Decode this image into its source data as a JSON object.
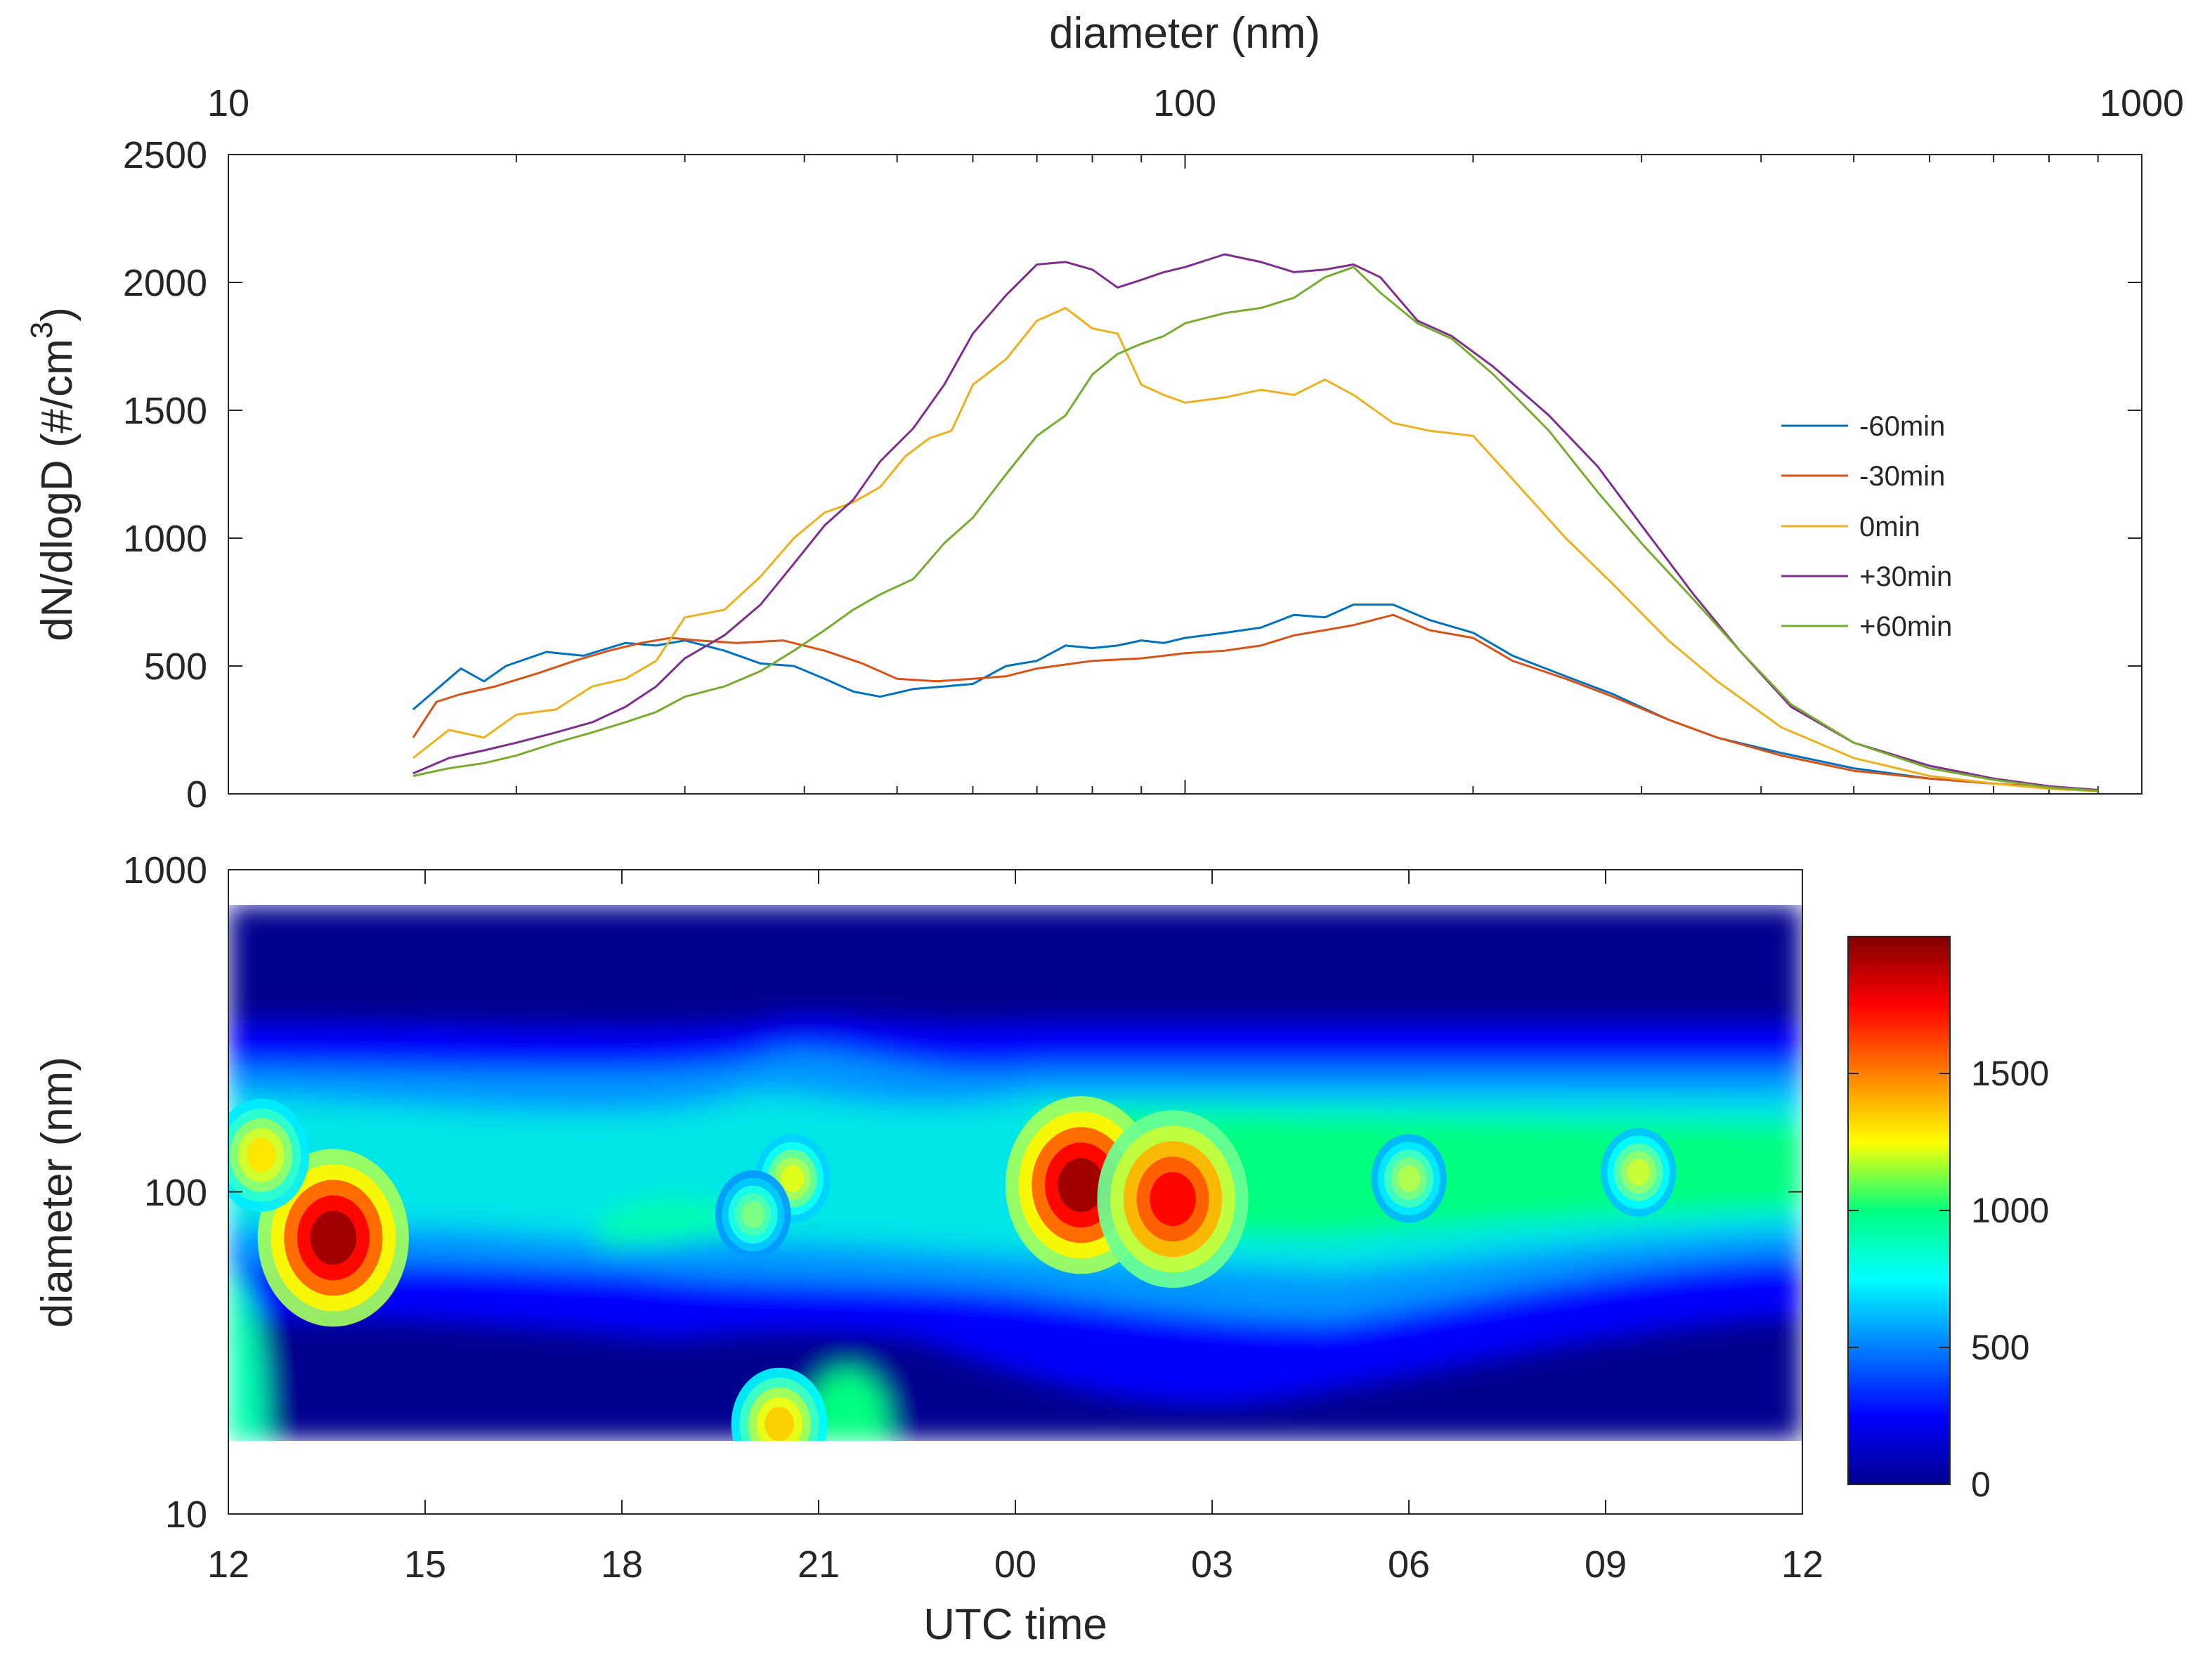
{
  "chart_data": [
    {
      "type": "line",
      "xscale": "log",
      "xlabel": "diameter (nm)",
      "ylabel_main": "dN/dlogD (#/cm",
      "ylabel_sup": "3",
      "ylabel_close": ")",
      "xlim": [
        10,
        1000
      ],
      "ylim": [
        0,
        2500
      ],
      "xtick_labels": [
        "10",
        "100",
        "1000"
      ],
      "ytick_labels": [
        "0",
        "500",
        "1000",
        "1500",
        "2000",
        "2500"
      ],
      "legend": [
        "-60min",
        "-30min",
        "0min",
        "+30min",
        "+60min"
      ],
      "series": [
        {
          "name": "-60min",
          "color": "#0072BD",
          "points": [
            [
              15.6,
              330
            ],
            [
              17.5,
              490
            ],
            [
              18.5,
              440
            ],
            [
              19.5,
              500
            ],
            [
              21.5,
              555
            ],
            [
              23.5,
              540
            ],
            [
              26,
              590
            ],
            [
              28,
              580
            ],
            [
              30,
              600
            ],
            [
              33,
              560
            ],
            [
              36,
              510
            ],
            [
              39,
              500
            ],
            [
              42,
              450
            ],
            [
              45,
              400
            ],
            [
              48,
              380
            ],
            [
              52,
              410
            ],
            [
              56,
              420
            ],
            [
              60,
              430
            ],
            [
              65,
              500
            ],
            [
              70,
              520
            ],
            [
              75,
              580
            ],
            [
              80,
              570
            ],
            [
              85,
              580
            ],
            [
              90,
              600
            ],
            [
              95,
              590
            ],
            [
              100,
              610
            ],
            [
              110,
              630
            ],
            [
              120,
              650
            ],
            [
              130,
              700
            ],
            [
              140,
              690
            ],
            [
              150,
              740
            ],
            [
              165,
              740
            ],
            [
              180,
              680
            ],
            [
              200,
              630
            ],
            [
              220,
              540
            ],
            [
              250,
              460
            ],
            [
              280,
              390
            ],
            [
              320,
              290
            ],
            [
              360,
              220
            ],
            [
              420,
              160
            ],
            [
              500,
              100
            ],
            [
              600,
              60
            ],
            [
              700,
              40
            ],
            [
              800,
              25
            ],
            [
              900,
              15
            ]
          ]
        },
        {
          "name": "-30min",
          "color": "#D95319",
          "points": [
            [
              15.6,
              220
            ],
            [
              16.5,
              360
            ],
            [
              17.5,
              390
            ],
            [
              19,
              420
            ],
            [
              21,
              470
            ],
            [
              23,
              520
            ],
            [
              25,
              560
            ],
            [
              27,
              590
            ],
            [
              29,
              610
            ],
            [
              31,
              600
            ],
            [
              34,
              590
            ],
            [
              38,
              600
            ],
            [
              42,
              560
            ],
            [
              46,
              510
            ],
            [
              50,
              450
            ],
            [
              55,
              440
            ],
            [
              60,
              450
            ],
            [
              65,
              460
            ],
            [
              70,
              490
            ],
            [
              80,
              520
            ],
            [
              90,
              530
            ],
            [
              100,
              550
            ],
            [
              110,
              560
            ],
            [
              120,
              580
            ],
            [
              130,
              620
            ],
            [
              140,
              640
            ],
            [
              150,
              660
            ],
            [
              165,
              700
            ],
            [
              180,
              640
            ],
            [
              200,
              610
            ],
            [
              220,
              520
            ],
            [
              250,
              450
            ],
            [
              280,
              380
            ],
            [
              320,
              290
            ],
            [
              360,
              220
            ],
            [
              420,
              150
            ],
            [
              500,
              90
            ],
            [
              600,
              60
            ],
            [
              700,
              40
            ],
            [
              800,
              25
            ],
            [
              900,
              15
            ]
          ]
        },
        {
          "name": "0min",
          "color": "#EDB120",
          "points": [
            [
              15.6,
              140
            ],
            [
              17,
              250
            ],
            [
              18.5,
              220
            ],
            [
              20,
              310
            ],
            [
              22,
              330
            ],
            [
              24,
              420
            ],
            [
              26,
              450
            ],
            [
              28,
              520
            ],
            [
              30,
              690
            ],
            [
              33,
              720
            ],
            [
              36,
              850
            ],
            [
              39,
              1000
            ],
            [
              42,
              1100
            ],
            [
              45,
              1140
            ],
            [
              48,
              1200
            ],
            [
              51,
              1320
            ],
            [
              54,
              1390
            ],
            [
              57,
              1420
            ],
            [
              60,
              1600
            ],
            [
              65,
              1700
            ],
            [
              70,
              1850
            ],
            [
              75,
              1900
            ],
            [
              80,
              1820
            ],
            [
              85,
              1800
            ],
            [
              90,
              1600
            ],
            [
              95,
              1560
            ],
            [
              100,
              1530
            ],
            [
              110,
              1550
            ],
            [
              120,
              1580
            ],
            [
              130,
              1560
            ],
            [
              140,
              1620
            ],
            [
              150,
              1560
            ],
            [
              165,
              1450
            ],
            [
              180,
              1420
            ],
            [
              200,
              1400
            ],
            [
              220,
              1230
            ],
            [
              250,
              1000
            ],
            [
              280,
              820
            ],
            [
              320,
              600
            ],
            [
              360,
              440
            ],
            [
              420,
              260
            ],
            [
              500,
              140
            ],
            [
              600,
              70
            ],
            [
              700,
              40
            ],
            [
              800,
              20
            ],
            [
              900,
              10
            ]
          ]
        },
        {
          "name": "+30min",
          "color": "#7E2F8E",
          "points": [
            [
              15.6,
              80
            ],
            [
              17,
              140
            ],
            [
              18.5,
              170
            ],
            [
              20,
              200
            ],
            [
              22,
              240
            ],
            [
              24,
              280
            ],
            [
              26,
              340
            ],
            [
              28,
              420
            ],
            [
              30,
              530
            ],
            [
              33,
              620
            ],
            [
              36,
              740
            ],
            [
              39,
              900
            ],
            [
              42,
              1050
            ],
            [
              45,
              1150
            ],
            [
              48,
              1300
            ],
            [
              52,
              1430
            ],
            [
              56,
              1600
            ],
            [
              60,
              1800
            ],
            [
              65,
              1950
            ],
            [
              70,
              2070
            ],
            [
              75,
              2080
            ],
            [
              80,
              2050
            ],
            [
              85,
              1980
            ],
            [
              90,
              2010
            ],
            [
              95,
              2040
            ],
            [
              100,
              2060
            ],
            [
              110,
              2110
            ],
            [
              120,
              2080
            ],
            [
              130,
              2040
            ],
            [
              140,
              2050
            ],
            [
              150,
              2070
            ],
            [
              160,
              2020
            ],
            [
              175,
              1850
            ],
            [
              190,
              1790
            ],
            [
              210,
              1670
            ],
            [
              240,
              1480
            ],
            [
              270,
              1280
            ],
            [
              300,
              1050
            ],
            [
              340,
              780
            ],
            [
              380,
              560
            ],
            [
              430,
              340
            ],
            [
              500,
              200
            ],
            [
              600,
              110
            ],
            [
              700,
              60
            ],
            [
              800,
              30
            ],
            [
              900,
              15
            ]
          ]
        },
        {
          "name": "+60min",
          "color": "#77AC30",
          "points": [
            [
              15.6,
              70
            ],
            [
              17,
              100
            ],
            [
              18.5,
              120
            ],
            [
              20,
              150
            ],
            [
              22,
              200
            ],
            [
              24,
              240
            ],
            [
              26,
              280
            ],
            [
              28,
              320
            ],
            [
              30,
              380
            ],
            [
              33,
              420
            ],
            [
              36,
              480
            ],
            [
              39,
              560
            ],
            [
              42,
              640
            ],
            [
              45,
              720
            ],
            [
              48,
              780
            ],
            [
              52,
              840
            ],
            [
              56,
              980
            ],
            [
              60,
              1080
            ],
            [
              65,
              1250
            ],
            [
              70,
              1400
            ],
            [
              75,
              1480
            ],
            [
              80,
              1640
            ],
            [
              85,
              1720
            ],
            [
              90,
              1760
            ],
            [
              95,
              1790
            ],
            [
              100,
              1840
            ],
            [
              110,
              1880
            ],
            [
              120,
              1900
            ],
            [
              130,
              1940
            ],
            [
              140,
              2020
            ],
            [
              150,
              2060
            ],
            [
              160,
              1960
            ],
            [
              175,
              1840
            ],
            [
              190,
              1780
            ],
            [
              210,
              1640
            ],
            [
              240,
              1420
            ],
            [
              270,
              1180
            ],
            [
              300,
              980
            ],
            [
              340,
              760
            ],
            [
              380,
              560
            ],
            [
              430,
              350
            ],
            [
              500,
              200
            ],
            [
              600,
              100
            ],
            [
              700,
              55
            ],
            [
              800,
              25
            ],
            [
              900,
              12
            ]
          ]
        }
      ]
    },
    {
      "type": "heatmap",
      "xlabel": "UTC time",
      "ylabel": "diameter (nm)",
      "yscale": "log",
      "ylim": [
        10,
        1000
      ],
      "xtick_labels": [
        "12",
        "15",
        "18",
        "21",
        "00",
        "03",
        "06",
        "09",
        "12"
      ],
      "ytick_labels": [
        "10",
        "100",
        "1000"
      ],
      "data_diameter_range_nm": [
        16,
        800
      ],
      "colormap": "jet",
      "colorbar_range": [
        0,
        2000
      ],
      "colorbar_ticks": [
        "0",
        "500",
        "1000",
        "1500"
      ],
      "features": [
        {
          "time_h": 13.6,
          "diameter_nm": 72,
          "value": 1950
        },
        {
          "time_h": 12.5,
          "diameter_nm": 130,
          "value": 1300
        },
        {
          "time_h": 20.6,
          "diameter_nm": 110,
          "value": 1200
        },
        {
          "time_h": 20.0,
          "diameter_nm": 85,
          "value": 1000
        },
        {
          "time_h": 20.4,
          "diameter_nm": 19,
          "value": 1350
        },
        {
          "time_h": 25.0,
          "diameter_nm": 105,
          "value": 1950
        },
        {
          "time_h": 26.4,
          "diameter_nm": 95,
          "value": 1750
        },
        {
          "time_h": 30.0,
          "diameter_nm": 110,
          "value": 1100
        },
        {
          "time_h": 33.5,
          "diameter_nm": 115,
          "value": 1150
        }
      ]
    }
  ]
}
